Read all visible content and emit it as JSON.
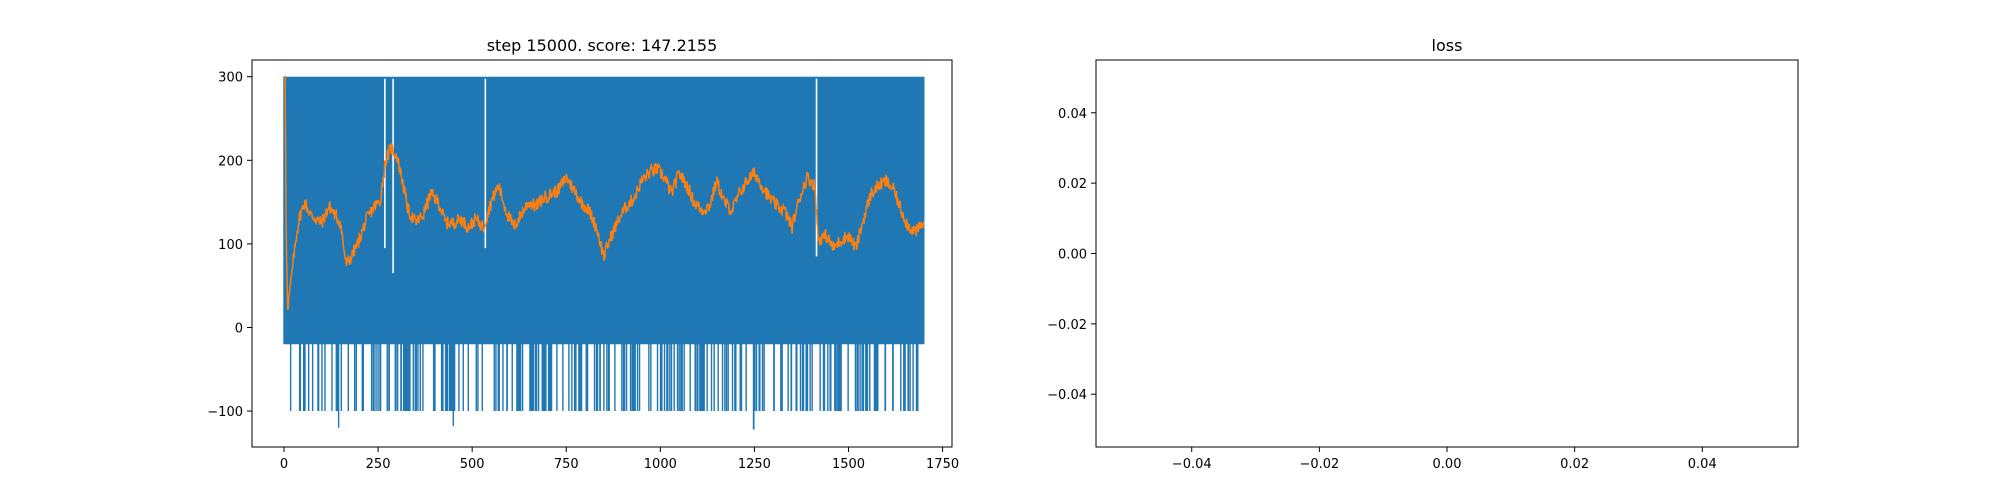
{
  "chart_data": [
    {
      "type": "line",
      "title": "step 15000. score: 147.2155",
      "xlabel": "",
      "ylabel": "",
      "xlim": [
        -85,
        1775
      ],
      "ylim": [
        -143,
        320
      ],
      "xticks": [
        0,
        250,
        500,
        750,
        1000,
        1250,
        1500,
        1750
      ],
      "xtick_labels": [
        "0",
        "250",
        "500",
        "750",
        "1000",
        "1250",
        "1500",
        "1750"
      ],
      "yticks": [
        -100,
        0,
        100,
        200,
        300
      ],
      "ytick_labels": [
        "−100",
        "0",
        "100",
        "200",
        "300"
      ],
      "grid": false,
      "series": [
        {
          "color": "#1f77b4",
          "description": "per-episode score, oscillating between about -20 and 300 with occasional drops to -100",
          "x_range": [
            0,
            1700
          ],
          "values_range": [
            -120,
            300
          ],
          "typical_high": 300,
          "typical_low": -20,
          "drop_value": -100,
          "deep_drops": [
            {
              "x": 145,
              "y": -120
            },
            {
              "x": 450,
              "y": -118
            },
            {
              "x": 1248,
              "y": -122
            }
          ],
          "gaps": [
            {
              "x": 268,
              "y_low": 95,
              "y_high": 300
            },
            {
              "x": 290,
              "y_low": 65,
              "y_high": 300
            },
            {
              "x": 535,
              "y_low": 95,
              "y_high": 300
            },
            {
              "x": 1415,
              "y_low": 85,
              "y_high": 300
            }
          ]
        },
        {
          "color": "#ff7f0e",
          "description": "moving average of score",
          "x": [
            0,
            3,
            6,
            10,
            20,
            30,
            40,
            55,
            70,
            85,
            100,
            120,
            135,
            150,
            165,
            180,
            200,
            220,
            240,
            255,
            270,
            285,
            300,
            315,
            330,
            350,
            370,
            390,
            410,
            430,
            450,
            470,
            490,
            510,
            530,
            550,
            570,
            590,
            610,
            630,
            650,
            670,
            690,
            710,
            730,
            750,
            770,
            790,
            810,
            830,
            850,
            870,
            890,
            910,
            930,
            950,
            970,
            990,
            1010,
            1030,
            1050,
            1070,
            1090,
            1110,
            1130,
            1150,
            1170,
            1190,
            1210,
            1230,
            1250,
            1270,
            1290,
            1310,
            1330,
            1350,
            1370,
            1390,
            1410,
            1420,
            1440,
            1460,
            1480,
            1500,
            1520,
            1540,
            1560,
            1580,
            1600,
            1620,
            1640,
            1660,
            1680,
            1700
          ],
          "y": [
            300,
            300,
            100,
            25,
            60,
            100,
            130,
            150,
            135,
            130,
            125,
            145,
            135,
            125,
            75,
            85,
            105,
            130,
            145,
            150,
            200,
            215,
            205,
            175,
            140,
            125,
            135,
            160,
            150,
            125,
            125,
            130,
            120,
            130,
            120,
            150,
            170,
            140,
            120,
            135,
            150,
            145,
            155,
            160,
            165,
            180,
            165,
            150,
            140,
            120,
            85,
            110,
            130,
            145,
            155,
            175,
            185,
            190,
            180,
            160,
            185,
            170,
            150,
            140,
            145,
            175,
            150,
            140,
            160,
            175,
            185,
            170,
            155,
            145,
            140,
            120,
            155,
            180,
            170,
            105,
            110,
            95,
            105,
            110,
            95,
            130,
            160,
            170,
            175,
            165,
            140,
            120,
            115,
            125
          ]
        }
      ]
    },
    {
      "type": "line",
      "title": "loss",
      "xlabel": "",
      "ylabel": "",
      "xlim": [
        -0.055,
        0.055
      ],
      "ylim": [
        -0.055,
        0.055
      ],
      "xticks": [
        -0.04,
        -0.02,
        0.0,
        0.02,
        0.04
      ],
      "xtick_labels": [
        "−0.04",
        "−0.02",
        "0.00",
        "0.02",
        "0.04"
      ],
      "yticks": [
        -0.04,
        -0.02,
        0.0,
        0.02,
        0.04
      ],
      "ytick_labels": [
        "−0.04",
        "−0.02",
        "0.00",
        "0.02",
        "0.04"
      ],
      "grid": false,
      "series": []
    }
  ]
}
